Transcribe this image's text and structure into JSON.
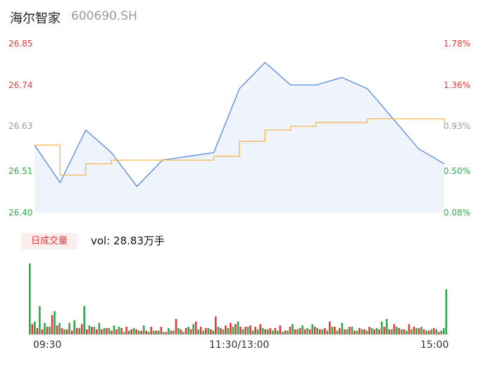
{
  "header": {
    "name": "海尔智家",
    "code": "600690.SH"
  },
  "colors": {
    "up": "#e23a3a",
    "down": "#2fa84f",
    "flat": "#9a9a9a",
    "price_line": "#4a7fe0",
    "avg_line": "#f2b43a",
    "area_fill": "#eef3fc"
  },
  "axis": {
    "left_ticks": [
      {
        "label": "26.85",
        "value": 26.85,
        "color": "#e23a3a"
      },
      {
        "label": "26.74",
        "value": 26.74,
        "color": "#e23a3a"
      },
      {
        "label": "26.63",
        "value": 26.63,
        "color": "#9a9a9a"
      },
      {
        "label": "26.51",
        "value": 26.51,
        "color": "#2fa84f"
      },
      {
        "label": "26.40",
        "value": 26.4,
        "color": "#2fa84f"
      }
    ],
    "right_ticks": [
      {
        "label": "1.78%",
        "color": "#e23a3a"
      },
      {
        "label": "1.36%",
        "color": "#e23a3a"
      },
      {
        "label": "0.93%",
        "color": "#9a9a9a"
      },
      {
        "label": "0.50%",
        "color": "#2fa84f"
      },
      {
        "label": "0.08%",
        "color": "#2fa84f"
      }
    ],
    "x_ticks": [
      "09:30",
      "11:30/13:00",
      "15:00"
    ]
  },
  "volume": {
    "badge": "日成交量",
    "label": "vol: 28.83万手"
  },
  "chart_data": {
    "type": "line",
    "x": [
      "09:30",
      "09:45",
      "10:00",
      "10:15",
      "10:30",
      "10:45",
      "11:00",
      "11:15",
      "11:30/13:00",
      "13:15",
      "13:30",
      "13:45",
      "14:00",
      "14:15",
      "14:30",
      "14:45",
      "15:00"
    ],
    "price_ylim": [
      26.4,
      26.85
    ],
    "series": [
      {
        "values": [
          26.58,
          26.48,
          26.62,
          26.56,
          26.47,
          26.54,
          26.55,
          26.56,
          26.73,
          26.8,
          26.74,
          26.74,
          26.76,
          26.73,
          26.65,
          26.57,
          26.53
        ]
      },
      {
        "values": [
          26.58,
          26.5,
          26.53,
          26.54,
          26.54,
          26.54,
          26.54,
          26.55,
          26.59,
          26.62,
          26.63,
          26.64,
          26.64,
          26.65,
          26.65,
          26.65,
          26.64
        ]
      }
    ],
    "volume_ylim": [
      0,
      60
    ],
    "volumes": [
      {
        "values": [
          8,
          5,
          4,
          6,
          15,
          7,
          5,
          4,
          3,
          5,
          8,
          4,
          6,
          4,
          4,
          5,
          3,
          4,
          5,
          6,
          4,
          4,
          3,
          3,
          6,
          3,
          6,
          2,
          3,
          12,
          4,
          5,
          4,
          10,
          6,
          5,
          4,
          14,
          5,
          7,
          9,
          8,
          6,
          6,
          7,
          6,
          8,
          4,
          5,
          5,
          7,
          3,
          6,
          4,
          5,
          4,
          4,
          6,
          4,
          5,
          10,
          6,
          5,
          4,
          6,
          3,
          5,
          4,
          6,
          4,
          4,
          6,
          4,
          8,
          5,
          4,
          8,
          6,
          5,
          4,
          3,
          5,
          2
        ]
      },
      {
        "values": [
          55,
          10,
          22,
          9,
          6,
          18,
          9,
          4,
          9,
          11,
          5,
          22,
          7,
          6,
          9,
          5,
          5,
          7,
          6,
          2,
          3,
          5,
          3,
          7,
          2,
          3,
          3,
          2,
          5,
          3,
          5,
          2,
          6,
          8,
          4,
          3,
          5,
          3,
          6,
          4,
          5,
          6,
          10,
          4,
          6,
          3,
          4,
          5,
          4,
          3,
          3,
          2,
          3,
          8,
          4,
          7,
          5,
          8,
          5,
          4,
          3,
          6,
          3,
          9,
          4,
          6,
          3,
          4,
          3,
          5,
          5,
          10,
          12,
          4,
          6,
          4,
          3,
          4,
          5,
          6,
          3,
          4,
          4,
          3,
          5,
          35
        ]
      }
    ]
  }
}
